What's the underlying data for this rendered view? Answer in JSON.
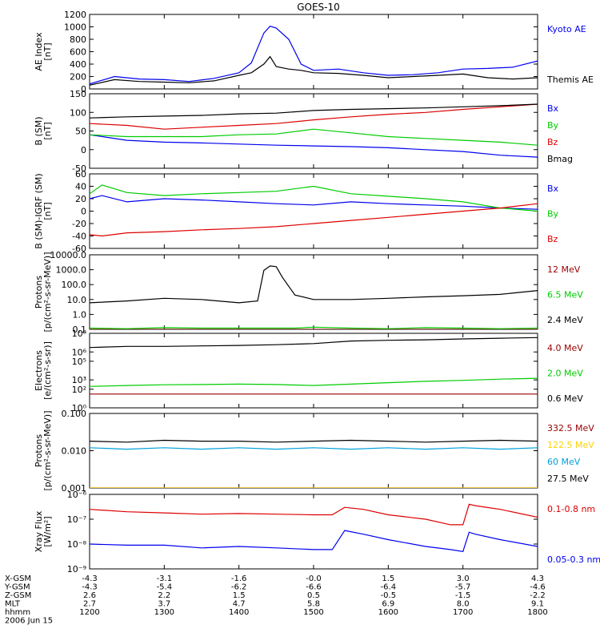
{
  "title": "GOES-10",
  "colors": {
    "black": "#000000",
    "blue": "#0000ee",
    "red": "#dd0000",
    "green": "#00cc00",
    "darkred": "#990000",
    "yellow": "#ffd400",
    "cyan": "#00a0dd"
  },
  "panels": [
    {
      "id": "ae",
      "ylabel": [
        "AE Index",
        "[nT]"
      ],
      "scale": "linear",
      "ylim": [
        0,
        1200
      ],
      "yticks": [
        0,
        200,
        400,
        600,
        800,
        1000,
        1200
      ],
      "yticklabels": [
        "0",
        "200",
        "400",
        "600",
        "800",
        "1000",
        "1200"
      ],
      "legend": [
        {
          "text": "Kyoto AE",
          "color": "#0000ee"
        },
        {
          "text": "Themis AE",
          "color": "#000000"
        }
      ]
    },
    {
      "id": "bsm",
      "ylabel": [
        "B (SM)",
        "[nT]"
      ],
      "scale": "linear",
      "ylim": [
        -50,
        150
      ],
      "yticks": [
        -50,
        0,
        50,
        100,
        150
      ],
      "yticklabels": [
        "-50",
        "0",
        "50",
        "100",
        "150"
      ],
      "legend": [
        {
          "text": "Bx",
          "color": "#0000ee"
        },
        {
          "text": "By",
          "color": "#00cc00"
        },
        {
          "text": "Bz",
          "color": "#dd0000"
        },
        {
          "text": "Bmag",
          "color": "#000000"
        }
      ]
    },
    {
      "id": "bdiff",
      "ylabel": [
        "B (SM)-IGRF (SM)",
        "[nT]"
      ],
      "scale": "linear",
      "ylim": [
        -60,
        60
      ],
      "yticks": [
        -60,
        -40,
        -20,
        0,
        20,
        40,
        60
      ],
      "yticklabels": [
        "-60",
        "-40",
        "-20",
        "0",
        "20",
        "40",
        "60"
      ],
      "legend": [
        {
          "text": "Bx",
          "color": "#0000ee"
        },
        {
          "text": "By",
          "color": "#00cc00"
        },
        {
          "text": "Bz",
          "color": "#dd0000"
        }
      ]
    },
    {
      "id": "protons1",
      "ylabel": [
        "Protons",
        "[p/(cm²-s-sr-MeV)]"
      ],
      "scale": "log",
      "ylim": [
        0.1,
        10000
      ],
      "yticks": [
        0.1,
        1,
        10,
        100,
        1000,
        10000
      ],
      "yticklabels": [
        "0.1",
        "1.0",
        "10.0",
        "100.0",
        "1000.0",
        "10000.0"
      ],
      "legend": [
        {
          "text": "12 MeV",
          "color": "#990000"
        },
        {
          "text": "6.5 MeV",
          "color": "#00cc00"
        },
        {
          "text": "2.4 MeV",
          "color": "#000000"
        }
      ]
    },
    {
      "id": "electrons",
      "ylabel": [
        "Electrons",
        "[e/(cm²-s-sr)]"
      ],
      "scale": "log",
      "ylim": [
        1,
        100000000
      ],
      "yticks": [
        1,
        100,
        1000,
        100000,
        1000000,
        100000000
      ],
      "yticklabels": [
        "10⁰",
        "10²",
        "10³",
        "10⁵",
        "10⁶",
        "10⁸"
      ],
      "legend": [
        {
          "text": "4.0 MeV",
          "color": "#990000"
        },
        {
          "text": "2.0 MeV",
          "color": "#00cc00"
        },
        {
          "text": "0.6 MeV",
          "color": "#000000"
        }
      ]
    },
    {
      "id": "protons2",
      "ylabel": [
        "Protons",
        "[p/(cm²-s-sr-MeV)]"
      ],
      "scale": "log",
      "ylim": [
        0.001,
        0.1
      ],
      "yticks": [
        0.001,
        0.01,
        0.1
      ],
      "yticklabels": [
        "0.001",
        "0.010",
        "0.100"
      ],
      "legend": [
        {
          "text": "332.5 MeV",
          "color": "#990000"
        },
        {
          "text": "122.5 MeV",
          "color": "#ffd400"
        },
        {
          "text": "60 MeV",
          "color": "#00a0dd"
        },
        {
          "text": "27.5 MeV",
          "color": "#000000"
        }
      ]
    },
    {
      "id": "xray",
      "ylabel": [
        "Xray Flux",
        "[W/m²]"
      ],
      "scale": "log",
      "ylim": [
        1e-09,
        1e-06
      ],
      "yticks": [
        1e-09,
        1e-08,
        1e-07,
        1e-06
      ],
      "yticklabels": [
        "10⁻⁹",
        "10⁻⁸",
        "10⁻⁷",
        "10⁻⁶"
      ],
      "legend": [
        {
          "text": "0.1-0.8 nm",
          "color": "#dd0000"
        },
        {
          "text": "0.05-0.3 nm",
          "color": "#0000ee"
        }
      ]
    }
  ],
  "xaxis": {
    "rows": [
      {
        "label": "X-GSM",
        "values": [
          "-4.3",
          "-3.1",
          "-1.6",
          "-0.0",
          "1.5",
          "3.0",
          "4.3"
        ]
      },
      {
        "label": "Y-GSM",
        "values": [
          "-4.3",
          "-5.4",
          "-6.2",
          "-6.6",
          "-6.4",
          "-5.7",
          "-4.6"
        ]
      },
      {
        "label": "Z-GSM",
        "values": [
          "2.6",
          "2.2",
          "1.5",
          "0.5",
          "-0.5",
          "-1.5",
          "-2.2"
        ]
      },
      {
        "label": "MLT",
        "values": [
          "2.7",
          "3.7",
          "4.7",
          "5.8",
          "6.9",
          "8.0",
          "9.1"
        ]
      },
      {
        "label": "hhmm",
        "values": [
          "1200",
          "1300",
          "1400",
          "1500",
          "1600",
          "1700",
          "1800"
        ]
      }
    ],
    "date": "2006 Jun 15"
  },
  "chart_data": [
    {
      "type": "line",
      "title": "GOES-10",
      "ylabel": "AE Index [nT]",
      "ylim": [
        0,
        1200
      ],
      "x": [
        1200,
        1220,
        1240,
        1300,
        1320,
        1340,
        1400,
        1410,
        1420,
        1425,
        1430,
        1440,
        1450,
        1500,
        1520,
        1540,
        1600,
        1620,
        1640,
        1700,
        1720,
        1740,
        1800
      ],
      "series": [
        {
          "name": "Kyoto AE",
          "values": [
            80,
            200,
            160,
            150,
            120,
            170,
            260,
            420,
            900,
            1010,
            980,
            800,
            400,
            300,
            320,
            260,
            220,
            230,
            260,
            320,
            330,
            350,
            450
          ]
        },
        {
          "name": "Themis AE",
          "values": [
            60,
            150,
            120,
            110,
            100,
            130,
            220,
            260,
            400,
            520,
            360,
            320,
            300,
            260,
            250,
            220,
            180,
            200,
            220,
            240,
            180,
            160,
            180
          ]
        }
      ]
    },
    {
      "type": "line",
      "ylabel": "B (SM) [nT]",
      "ylim": [
        -50,
        150
      ],
      "x": [
        1200,
        1230,
        1300,
        1330,
        1400,
        1430,
        1500,
        1530,
        1600,
        1630,
        1700,
        1730,
        1800
      ],
      "series": [
        {
          "name": "Bx",
          "values": [
            40,
            25,
            20,
            18,
            15,
            12,
            10,
            8,
            5,
            0,
            -5,
            -15,
            -20
          ]
        },
        {
          "name": "By",
          "values": [
            40,
            35,
            35,
            35,
            40,
            42,
            55,
            45,
            35,
            30,
            25,
            20,
            12
          ]
        },
        {
          "name": "Bz",
          "values": [
            70,
            65,
            55,
            60,
            65,
            70,
            80,
            88,
            95,
            100,
            108,
            115,
            122
          ]
        },
        {
          "name": "Bmag",
          "values": [
            85,
            88,
            90,
            92,
            96,
            98,
            105,
            108,
            110,
            112,
            115,
            118,
            122
          ]
        }
      ]
    },
    {
      "type": "line",
      "ylabel": "B (SM)-IGRF (SM) [nT]",
      "ylim": [
        -60,
        60
      ],
      "x": [
        1200,
        1210,
        1230,
        1300,
        1330,
        1400,
        1430,
        1500,
        1530,
        1600,
        1630,
        1700,
        1730,
        1800
      ],
      "series": [
        {
          "name": "Bx",
          "values": [
            20,
            25,
            15,
            20,
            18,
            15,
            12,
            10,
            15,
            12,
            10,
            8,
            5,
            3
          ]
        },
        {
          "name": "By",
          "values": [
            28,
            42,
            30,
            25,
            28,
            30,
            32,
            40,
            28,
            24,
            20,
            15,
            5,
            0
          ]
        },
        {
          "name": "Bz",
          "values": [
            -38,
            -40,
            -35,
            -33,
            -30,
            -28,
            -25,
            -20,
            -15,
            -10,
            -5,
            0,
            5,
            12
          ]
        }
      ]
    },
    {
      "type": "line",
      "ylabel": "Protons [p/(cm²-s-sr-MeV)]",
      "yscale": "log",
      "ylim": [
        0.1,
        10000
      ],
      "x": [
        1200,
        1230,
        1300,
        1330,
        1400,
        1415,
        1420,
        1425,
        1430,
        1435,
        1445,
        1500,
        1530,
        1600,
        1630,
        1700,
        1730,
        1800
      ],
      "series": [
        {
          "name": "12 MeV",
          "values": [
            0.1,
            0.1,
            0.1,
            0.1,
            0.1,
            0.1,
            0.1,
            0.1,
            0.1,
            0.1,
            0.1,
            0.1,
            0.1,
            0.1,
            0.1,
            0.1,
            0.1,
            0.1
          ]
        },
        {
          "name": "6.5 MeV",
          "values": [
            0.12,
            0.11,
            0.13,
            0.12,
            0.12,
            0.12,
            0.12,
            0.12,
            0.12,
            0.12,
            0.12,
            0.14,
            0.12,
            0.11,
            0.13,
            0.12,
            0.11,
            0.12
          ]
        },
        {
          "name": "2.4 MeV",
          "values": [
            6,
            8,
            12,
            10,
            6,
            8,
            900,
            1800,
            1600,
            300,
            20,
            10,
            10,
            12,
            15,
            18,
            22,
            40
          ]
        }
      ]
    },
    {
      "type": "line",
      "ylabel": "Electrons [e/(cm²-s-sr)]",
      "yscale": "log",
      "ylim": [
        1,
        100000000
      ],
      "x": [
        1200,
        1230,
        1300,
        1330,
        1400,
        1430,
        1500,
        1530,
        1600,
        1630,
        1700,
        1730,
        1800
      ],
      "series": [
        {
          "name": "4.0 MeV",
          "values": [
            30,
            30,
            30,
            30,
            30,
            30,
            30,
            30,
            30,
            30,
            30,
            30,
            30
          ]
        },
        {
          "name": "2.0 MeV",
          "values": [
            200,
            250,
            300,
            320,
            350,
            320,
            250,
            350,
            500,
            700,
            900,
            1200,
            1500
          ]
        },
        {
          "name": "0.6 MeV",
          "values": [
            3000000,
            4000000,
            4000000,
            4500000,
            5000000,
            6000000,
            8000000,
            15000000,
            18000000,
            20000000,
            25000000,
            30000000,
            35000000
          ]
        }
      ]
    },
    {
      "type": "line",
      "ylabel": "Protons [p/(cm²-s-sr-MeV)]",
      "yscale": "log",
      "ylim": [
        0.001,
        0.1
      ],
      "x": [
        1200,
        1230,
        1300,
        1330,
        1400,
        1430,
        1500,
        1530,
        1600,
        1630,
        1700,
        1730,
        1800
      ],
      "series": [
        {
          "name": "332.5 MeV",
          "values": [
            0.001,
            0.001,
            0.001,
            0.001,
            0.001,
            0.001,
            0.001,
            0.001,
            0.001,
            0.001,
            0.001,
            0.001,
            0.001
          ]
        },
        {
          "name": "122.5 MeV",
          "values": [
            0.001,
            0.001,
            0.001,
            0.001,
            0.001,
            0.001,
            0.001,
            0.001,
            0.001,
            0.001,
            0.001,
            0.001,
            0.001
          ]
        },
        {
          "name": "60 MeV",
          "values": [
            0.012,
            0.011,
            0.012,
            0.011,
            0.012,
            0.011,
            0.012,
            0.011,
            0.012,
            0.011,
            0.012,
            0.011,
            0.012
          ]
        },
        {
          "name": "27.5 MeV",
          "values": [
            0.018,
            0.017,
            0.019,
            0.018,
            0.018,
            0.017,
            0.018,
            0.019,
            0.018,
            0.017,
            0.018,
            0.019,
            0.018
          ]
        }
      ]
    },
    {
      "type": "line",
      "ylabel": "Xray Flux [W/m²]",
      "yscale": "log",
      "ylim": [
        1e-09,
        1e-06
      ],
      "x": [
        1200,
        1230,
        1300,
        1330,
        1400,
        1430,
        1500,
        1515,
        1525,
        1540,
        1600,
        1630,
        1650,
        1700,
        1705,
        1710,
        1730,
        1800
      ],
      "series": [
        {
          "name": "0.1-0.8 nm",
          "values": [
            2.5e-07,
            2e-07,
            1.8e-07,
            1.6e-07,
            1.7e-07,
            1.6e-07,
            1.5e-07,
            1.5e-07,
            3e-07,
            2.5e-07,
            1.5e-07,
            1e-07,
            6e-08,
            6e-08,
            4e-07,
            3.5e-07,
            2.5e-07,
            1.2e-07
          ]
        },
        {
          "name": "0.05-0.3 nm",
          "values": [
            1e-08,
            9e-09,
            9e-09,
            7e-09,
            8e-09,
            7e-09,
            6e-09,
            6e-09,
            3.5e-08,
            2.5e-08,
            1.5e-08,
            8e-09,
            6e-09,
            5e-09,
            3e-08,
            2.5e-08,
            1.5e-08,
            8e-09
          ]
        }
      ]
    }
  ]
}
